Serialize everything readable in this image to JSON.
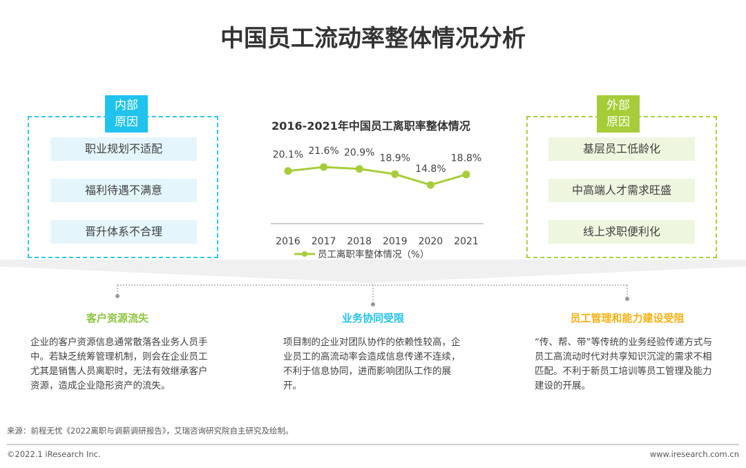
{
  "title": "中国员工流动率整体情况分析",
  "internal": {
    "tag_line1": "内部",
    "tag_line2": "原因",
    "items": [
      "职业规划不适配",
      "福利待遇不满意",
      "晋升体系不合理"
    ]
  },
  "external": {
    "tag_line1": "外部",
    "tag_line2": "原因",
    "items": [
      "基层员工低龄化",
      "中高端人才需求旺盛",
      "线上求职便利化"
    ]
  },
  "chart_data": {
    "type": "line",
    "title": "2016-2021年中国员工离职率整体情况",
    "categories": [
      "2016",
      "2017",
      "2018",
      "2019",
      "2020",
      "2021"
    ],
    "series": [
      {
        "name": "员工离职率整体情况（%）",
        "values": [
          20.1,
          21.6,
          20.9,
          18.9,
          14.8,
          18.8
        ]
      }
    ],
    "data_labels": [
      "20.1%",
      "21.6%",
      "20.9%",
      "18.9%",
      "14.8%",
      "18.8%"
    ],
    "legend": "bottom",
    "color": "#a6cd38"
  },
  "impacts": [
    {
      "heading": "客户资源流失",
      "color": "#8cc63f",
      "text": "企业的客户资源信息通常散落各业务人员手中。若缺乏统筹管理机制，则会在企业员工尤其是销售人员离职时，无法有效继承客户资源，造成企业隐形资产的流失。"
    },
    {
      "heading": "业务协同受限",
      "color": "#1fc3ee",
      "text": "项目制的企业对团队协作的依赖性较高，企业员工的高流动率会造成信息传递不连续，不利于信息协同，进而影响团队工作的展开。"
    },
    {
      "heading": "员工管理和能力建设受阻",
      "color": "#f5b00f",
      "text": "“传、帮、带”等传统的业务经验传递方式与员工高流动时代对共享知识沉淀的需求不相匹配。不利于新员工培训等员工管理及能力建设的开展。"
    }
  ],
  "footer": {
    "source": "来源：前程无忧《2022离职与调薪调研报告》，艾瑞咨询研究院自主研究及绘制。",
    "copyright": "©2022.1 iResearch Inc.",
    "url": "www.iresearch.com.cn"
  }
}
